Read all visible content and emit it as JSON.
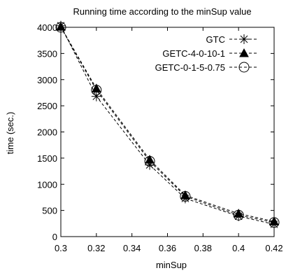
{
  "chart_data": {
    "type": "line",
    "title": "Running time according to the minSup value",
    "xlabel": "minSup",
    "ylabel": "time (sec.)",
    "xlim": [
      0.3,
      0.42
    ],
    "ylim": [
      0,
      4000
    ],
    "xticks": [
      0.3,
      0.32,
      0.34,
      0.36,
      0.38,
      0.4,
      0.42
    ],
    "xtick_labels": [
      "0.3",
      "0.32",
      "0.34",
      "0.36",
      "0.38",
      "0.4",
      "0.42"
    ],
    "yticks": [
      0,
      500,
      1000,
      1500,
      2000,
      2500,
      3000,
      3500,
      4000
    ],
    "ytick_labels": [
      "0",
      "500",
      "1000",
      "1500",
      "2000",
      "2500",
      "3000",
      "3500",
      "4000"
    ],
    "grid": false,
    "legend_position": "top-right",
    "x": [
      0.3,
      0.32,
      0.35,
      0.37,
      0.4,
      0.42
    ],
    "series": [
      {
        "name": "GTC",
        "marker": "star",
        "values": [
          4030,
          2680,
          1370,
          730,
          390,
          235
        ]
      },
      {
        "name": "GETC-4-0-10-1",
        "marker": "filled-triangle",
        "values": [
          4010,
          2830,
          1470,
          790,
          440,
          290
        ]
      },
      {
        "name": "GETC-0-1-5-0.75",
        "marker": "open-circle",
        "values": [
          4000,
          2800,
          1440,
          770,
          410,
          270
        ]
      }
    ]
  }
}
